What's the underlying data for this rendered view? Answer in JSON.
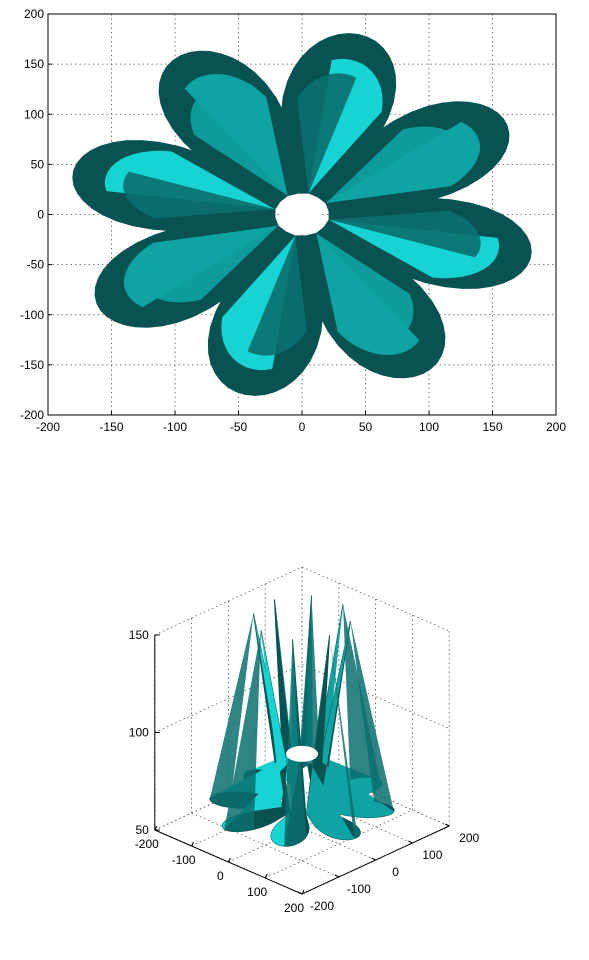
{
  "colors": {
    "light_face": "#17d3d3",
    "mid_face": "#0fa3a3",
    "dark_face": "#0b6f6f",
    "darkest_face": "#085252",
    "background": "#ffffff"
  },
  "chart_data": [
    {
      "type": "surface",
      "view": "top",
      "petal_count": 8,
      "grid": true,
      "xlim": [
        -200,
        200
      ],
      "ylim": [
        -200,
        200
      ],
      "xticks": [
        "-200",
        "-150",
        "-100",
        "-50",
        "0",
        "50",
        "100",
        "150",
        "200"
      ],
      "yticks": [
        "200",
        "150",
        "100",
        "50",
        "0",
        "-50",
        "-100",
        "-150",
        "-200"
      ]
    },
    {
      "type": "surface",
      "view": "3d",
      "petal_count": 8,
      "grid": true,
      "xlim": [
        -200,
        200
      ],
      "ylim": [
        -200,
        200
      ],
      "zlim": [
        50,
        150
      ],
      "xticks": [
        "-200",
        "-100",
        "0",
        "100",
        "200"
      ],
      "yticks": [
        "-200",
        "-100",
        "0",
        "100",
        "200"
      ],
      "zticks": [
        "50",
        "100",
        "150"
      ]
    }
  ]
}
